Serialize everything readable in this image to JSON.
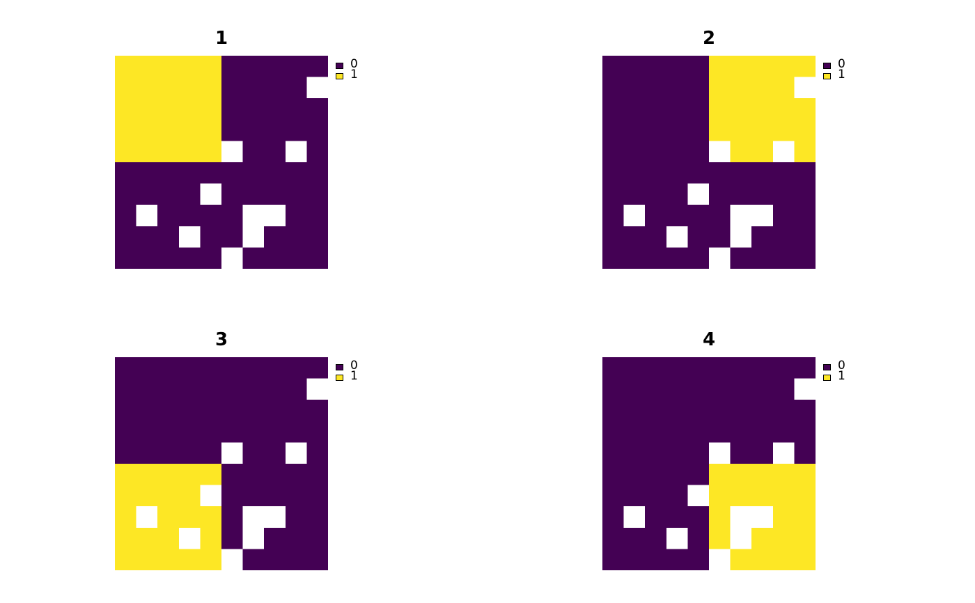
{
  "chart_data": {
    "type": "heatmap",
    "colors": {
      "0": "#440154",
      "1": "#fde725",
      "missing": "#ffffff"
    },
    "legend_placement": "top-right",
    "grid_size": [
      10,
      10
    ],
    "panels": [
      {
        "title": "1",
        "legend": [
          {
            "label": "0",
            "color": "#440154"
          },
          {
            "label": "1",
            "color": "#fde725"
          }
        ],
        "grid": [
          [
            1,
            1,
            1,
            1,
            1,
            0,
            0,
            0,
            0,
            0
          ],
          [
            1,
            1,
            1,
            1,
            1,
            0,
            0,
            0,
            0,
            null
          ],
          [
            1,
            1,
            1,
            1,
            1,
            0,
            0,
            0,
            0,
            0
          ],
          [
            1,
            1,
            1,
            1,
            1,
            0,
            0,
            0,
            0,
            0
          ],
          [
            1,
            1,
            1,
            1,
            1,
            null,
            0,
            0,
            null,
            0
          ],
          [
            0,
            0,
            0,
            0,
            0,
            0,
            0,
            0,
            0,
            0
          ],
          [
            0,
            0,
            0,
            0,
            null,
            0,
            0,
            0,
            0,
            0
          ],
          [
            0,
            null,
            0,
            0,
            0,
            0,
            null,
            null,
            0,
            0
          ],
          [
            0,
            0,
            0,
            null,
            0,
            0,
            null,
            0,
            0,
            0
          ],
          [
            0,
            0,
            0,
            0,
            0,
            null,
            0,
            0,
            0,
            0
          ]
        ]
      },
      {
        "title": "2",
        "legend": [
          {
            "label": "0",
            "color": "#440154"
          },
          {
            "label": "1",
            "color": "#fde725"
          }
        ],
        "grid": [
          [
            0,
            0,
            0,
            0,
            0,
            1,
            1,
            1,
            1,
            1
          ],
          [
            0,
            0,
            0,
            0,
            0,
            1,
            1,
            1,
            1,
            null
          ],
          [
            0,
            0,
            0,
            0,
            0,
            1,
            1,
            1,
            1,
            1
          ],
          [
            0,
            0,
            0,
            0,
            0,
            1,
            1,
            1,
            1,
            1
          ],
          [
            0,
            0,
            0,
            0,
            0,
            null,
            1,
            1,
            null,
            1
          ],
          [
            0,
            0,
            0,
            0,
            0,
            0,
            0,
            0,
            0,
            0
          ],
          [
            0,
            0,
            0,
            0,
            null,
            0,
            0,
            0,
            0,
            0
          ],
          [
            0,
            null,
            0,
            0,
            0,
            0,
            null,
            null,
            0,
            0
          ],
          [
            0,
            0,
            0,
            null,
            0,
            0,
            null,
            0,
            0,
            0
          ],
          [
            0,
            0,
            0,
            0,
            0,
            null,
            0,
            0,
            0,
            0
          ]
        ]
      },
      {
        "title": "3",
        "legend": [
          {
            "label": "0",
            "color": "#440154"
          },
          {
            "label": "1",
            "color": "#fde725"
          }
        ],
        "grid": [
          [
            0,
            0,
            0,
            0,
            0,
            0,
            0,
            0,
            0,
            0
          ],
          [
            0,
            0,
            0,
            0,
            0,
            0,
            0,
            0,
            0,
            null
          ],
          [
            0,
            0,
            0,
            0,
            0,
            0,
            0,
            0,
            0,
            0
          ],
          [
            0,
            0,
            0,
            0,
            0,
            0,
            0,
            0,
            0,
            0
          ],
          [
            0,
            0,
            0,
            0,
            0,
            null,
            0,
            0,
            null,
            0
          ],
          [
            1,
            1,
            1,
            1,
            1,
            0,
            0,
            0,
            0,
            0
          ],
          [
            1,
            1,
            1,
            1,
            null,
            0,
            0,
            0,
            0,
            0
          ],
          [
            1,
            null,
            1,
            1,
            1,
            0,
            null,
            null,
            0,
            0
          ],
          [
            1,
            1,
            1,
            null,
            1,
            0,
            null,
            0,
            0,
            0
          ],
          [
            1,
            1,
            1,
            1,
            1,
            null,
            0,
            0,
            0,
            0
          ]
        ]
      },
      {
        "title": "4",
        "legend": [
          {
            "label": "0",
            "color": "#440154"
          },
          {
            "label": "1",
            "color": "#fde725"
          }
        ],
        "grid": [
          [
            0,
            0,
            0,
            0,
            0,
            0,
            0,
            0,
            0,
            0
          ],
          [
            0,
            0,
            0,
            0,
            0,
            0,
            0,
            0,
            0,
            null
          ],
          [
            0,
            0,
            0,
            0,
            0,
            0,
            0,
            0,
            0,
            0
          ],
          [
            0,
            0,
            0,
            0,
            0,
            0,
            0,
            0,
            0,
            0
          ],
          [
            0,
            0,
            0,
            0,
            0,
            null,
            0,
            0,
            null,
            0
          ],
          [
            0,
            0,
            0,
            0,
            0,
            1,
            1,
            1,
            1,
            1
          ],
          [
            0,
            0,
            0,
            0,
            null,
            1,
            1,
            1,
            1,
            1
          ],
          [
            0,
            null,
            0,
            0,
            0,
            1,
            null,
            null,
            1,
            1
          ],
          [
            0,
            0,
            0,
            null,
            0,
            1,
            null,
            1,
            1,
            1
          ],
          [
            0,
            0,
            0,
            0,
            0,
            null,
            1,
            1,
            1,
            1
          ]
        ]
      }
    ]
  }
}
